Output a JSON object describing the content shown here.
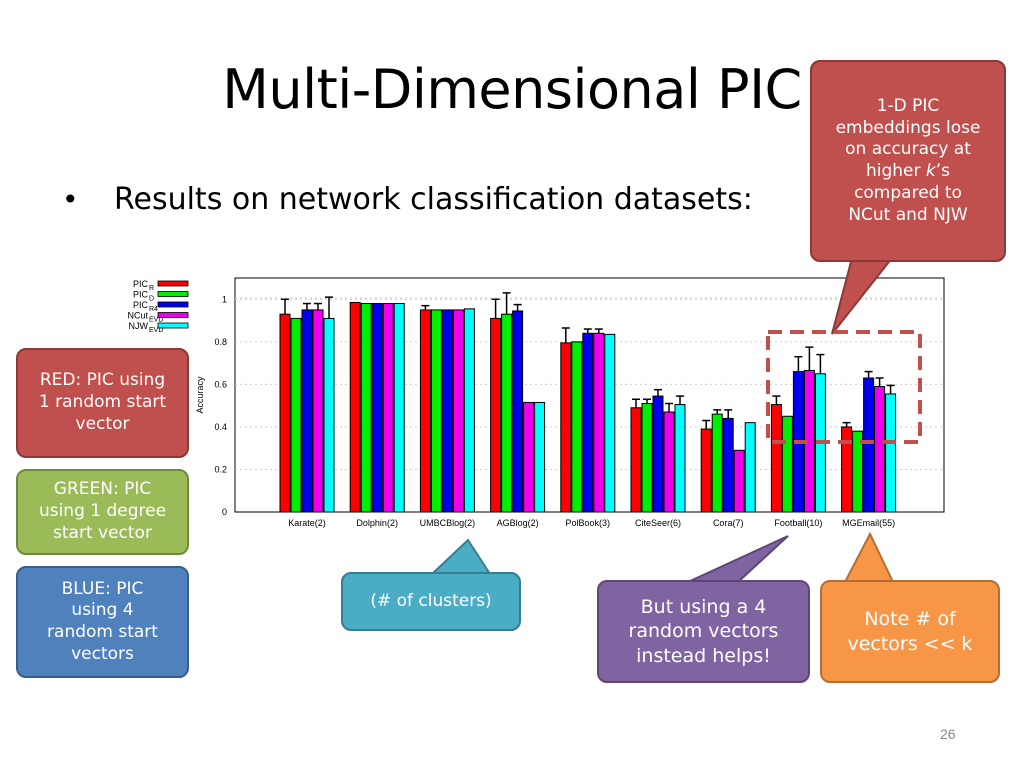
{
  "slide": {
    "title": "Multi-Dimensional PIC",
    "bullet": "Results on network classification datasets:",
    "slide_number": "26"
  },
  "callouts": {
    "top_right": {
      "lines": [
        "1-D PIC",
        "embeddings lose",
        "on accuracy at",
        "higher ",
        "compared to",
        "NCut and NJW"
      ],
      "k_italic": "k",
      "k_suffix": "’s",
      "color": "#c0504d"
    },
    "red": {
      "lines": [
        "RED: PIC using",
        "1 random start",
        "vector"
      ],
      "color": "#c0504d"
    },
    "green": {
      "lines": [
        "GREEN: PIC",
        "using 1 degree",
        "start vector"
      ],
      "color": "#9bbb59"
    },
    "blue": {
      "lines": [
        "BLUE: PIC",
        "using 4",
        "random start",
        "vectors"
      ],
      "color": "#4f81bd"
    },
    "clusters": {
      "text": "(# of clusters)",
      "color": "#4bacc6"
    },
    "purple": {
      "lines": [
        "But  using a 4",
        "random vectors",
        "instead helps!"
      ],
      "color": "#8064a2"
    },
    "orange": {
      "lines": [
        "Note # of",
        "vectors << k"
      ],
      "color": "#f79646"
    },
    "highlight_color": "#c0504d"
  },
  "chart_data": {
    "type": "bar",
    "ylabel": "Accuracy",
    "ylim": [
      0,
      1.1
    ],
    "yticks": [
      0,
      0.2,
      0.4,
      0.6,
      0.8,
      1
    ],
    "ytick_labels": [
      "0",
      "0.2",
      "0.4",
      "0.6",
      "0.8",
      "1"
    ],
    "grid": true,
    "legend_position": "top-left-outside",
    "categories": [
      "Karate(2)",
      "Dolphin(2)",
      "UMBCBlog(2)",
      "AGBlog(2)",
      "PolBook(3)",
      "CiteSeer(6)",
      "Cora(7)",
      "Football(10)",
      "MGEmail(55)"
    ],
    "series": [
      {
        "name": "PIC",
        "sub": "R",
        "color": "#ff0000",
        "values": [
          0.93,
          0.985,
          0.95,
          0.91,
          0.795,
          0.49,
          0.39,
          0.505,
          0.4
        ],
        "errors": [
          0.07,
          0.0,
          0.02,
          0.09,
          0.07,
          0.04,
          0.04,
          0.04,
          0.02
        ]
      },
      {
        "name": "PIC",
        "sub": "D",
        "color": "#00ee00",
        "values": [
          0.91,
          0.98,
          0.95,
          0.93,
          0.8,
          0.51,
          0.46,
          0.45,
          0.38
        ],
        "errors": [
          0.0,
          0.0,
          0.0,
          0.1,
          0.0,
          0.02,
          0.02,
          0.0,
          0.0
        ]
      },
      {
        "name": "PIC",
        "sub": "R4",
        "color": "#0000ee",
        "values": [
          0.95,
          0.98,
          0.95,
          0.945,
          0.84,
          0.545,
          0.44,
          0.66,
          0.63
        ],
        "errors": [
          0.03,
          0.0,
          0.0,
          0.03,
          0.02,
          0.03,
          0.04,
          0.07,
          0.03
        ]
      },
      {
        "name": "NCut",
        "sub": "EVD",
        "color": "#ee00ee",
        "values": [
          0.95,
          0.98,
          0.95,
          0.515,
          0.84,
          0.47,
          0.29,
          0.665,
          0.59
        ],
        "errors": [
          0.03,
          0.0,
          0.0,
          0.0,
          0.02,
          0.04,
          0.0,
          0.11,
          0.04
        ]
      },
      {
        "name": "NJW",
        "sub": "EVD",
        "color": "#00ffff",
        "values": [
          0.91,
          0.98,
          0.955,
          0.515,
          0.835,
          0.505,
          0.42,
          0.65,
          0.555
        ],
        "errors": [
          0.1,
          0.0,
          0.0,
          0.0,
          0.0,
          0.04,
          0.0,
          0.09,
          0.04
        ]
      }
    ]
  }
}
